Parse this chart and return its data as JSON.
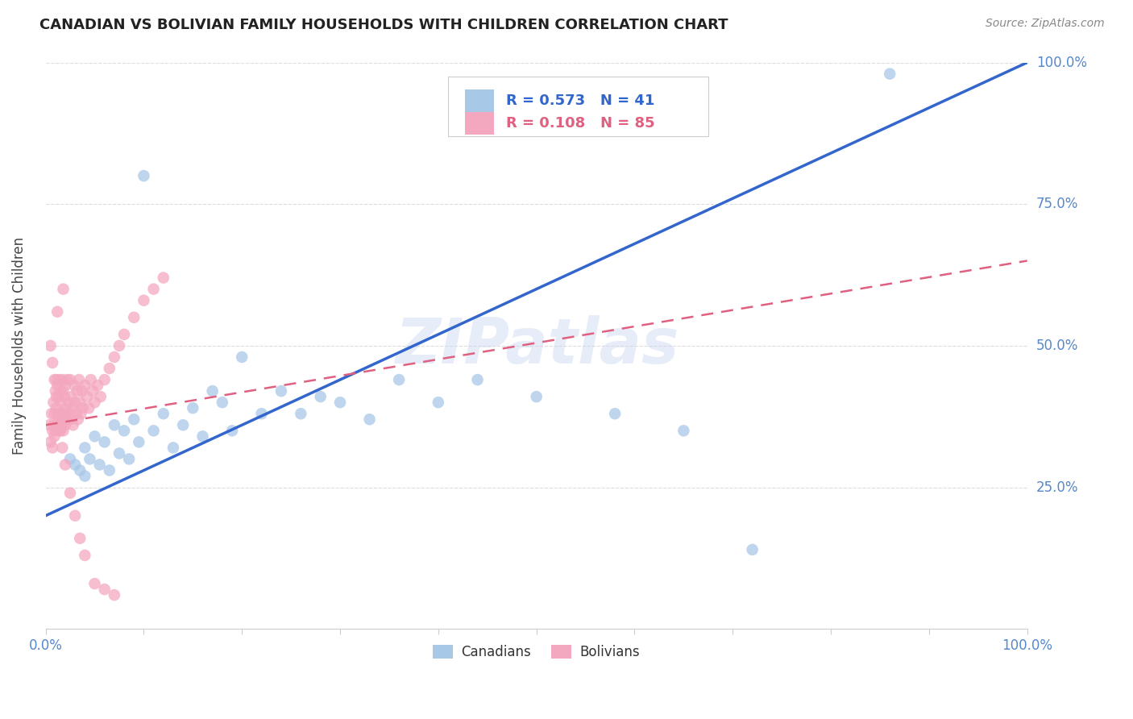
{
  "title": "CANADIAN VS BOLIVIAN FAMILY HOUSEHOLDS WITH CHILDREN CORRELATION CHART",
  "source": "Source: ZipAtlas.com",
  "ylabel": "Family Households with Children",
  "canadian_R": 0.573,
  "canadian_N": 41,
  "bolivian_R": 0.108,
  "bolivian_N": 85,
  "canadian_color": "#a8c8e8",
  "bolivian_color": "#f4a8c0",
  "canadian_line_color": "#3366cc",
  "bolivian_line_color": "#e06080",
  "watermark": "ZIPatlas",
  "xlim": [
    0.0,
    1.0
  ],
  "ylim": [
    0.0,
    1.0
  ],
  "xticks": [
    0.0,
    0.1,
    0.2,
    0.3,
    0.4,
    0.5,
    0.6,
    0.7,
    0.8,
    0.9,
    1.0
  ],
  "yticks": [
    0.0,
    0.25,
    0.5,
    0.75,
    1.0
  ],
  "background_color": "#ffffff",
  "grid_color": "#dddddd",
  "tick_color": "#5588cc",
  "canadian_x": [
    0.025,
    0.03,
    0.035,
    0.04,
    0.04,
    0.045,
    0.05,
    0.055,
    0.06,
    0.065,
    0.07,
    0.075,
    0.08,
    0.085,
    0.09,
    0.095,
    0.1,
    0.11,
    0.12,
    0.13,
    0.14,
    0.15,
    0.16,
    0.17,
    0.18,
    0.19,
    0.2,
    0.22,
    0.24,
    0.26,
    0.28,
    0.3,
    0.33,
    0.36,
    0.4,
    0.44,
    0.5,
    0.58,
    0.65,
    0.72,
    0.86
  ],
  "canadian_y": [
    0.3,
    0.29,
    0.28,
    0.32,
    0.27,
    0.3,
    0.34,
    0.29,
    0.33,
    0.28,
    0.36,
    0.31,
    0.35,
    0.3,
    0.37,
    0.33,
    0.8,
    0.35,
    0.38,
    0.32,
    0.36,
    0.39,
    0.34,
    0.42,
    0.4,
    0.35,
    0.48,
    0.38,
    0.42,
    0.38,
    0.41,
    0.4,
    0.37,
    0.44,
    0.4,
    0.44,
    0.41,
    0.38,
    0.35,
    0.14,
    0.98
  ],
  "bolivian_x": [
    0.004,
    0.005,
    0.006,
    0.007,
    0.007,
    0.008,
    0.008,
    0.009,
    0.009,
    0.01,
    0.01,
    0.011,
    0.011,
    0.012,
    0.012,
    0.013,
    0.013,
    0.014,
    0.014,
    0.015,
    0.015,
    0.016,
    0.016,
    0.017,
    0.017,
    0.018,
    0.018,
    0.019,
    0.019,
    0.02,
    0.02,
    0.021,
    0.022,
    0.022,
    0.023,
    0.024,
    0.025,
    0.025,
    0.026,
    0.027,
    0.028,
    0.029,
    0.03,
    0.031,
    0.032,
    0.033,
    0.034,
    0.035,
    0.036,
    0.037,
    0.038,
    0.04,
    0.042,
    0.044,
    0.046,
    0.048,
    0.05,
    0.053,
    0.056,
    0.06,
    0.065,
    0.07,
    0.075,
    0.08,
    0.09,
    0.1,
    0.11,
    0.12,
    0.005,
    0.007,
    0.009,
    0.011,
    0.013,
    0.015,
    0.017,
    0.02,
    0.025,
    0.03,
    0.035,
    0.04,
    0.05,
    0.06,
    0.07,
    0.012,
    0.018
  ],
  "bolivian_y": [
    0.36,
    0.33,
    0.38,
    0.35,
    0.32,
    0.4,
    0.36,
    0.34,
    0.38,
    0.42,
    0.35,
    0.44,
    0.39,
    0.36,
    0.43,
    0.37,
    0.41,
    0.35,
    0.44,
    0.38,
    0.42,
    0.36,
    0.4,
    0.37,
    0.44,
    0.35,
    0.42,
    0.38,
    0.41,
    0.36,
    0.43,
    0.39,
    0.37,
    0.44,
    0.4,
    0.38,
    0.44,
    0.37,
    0.41,
    0.39,
    0.36,
    0.43,
    0.4,
    0.38,
    0.42,
    0.37,
    0.44,
    0.4,
    0.38,
    0.42,
    0.39,
    0.43,
    0.41,
    0.39,
    0.44,
    0.42,
    0.4,
    0.43,
    0.41,
    0.44,
    0.46,
    0.48,
    0.5,
    0.52,
    0.55,
    0.58,
    0.6,
    0.62,
    0.5,
    0.47,
    0.44,
    0.41,
    0.38,
    0.35,
    0.32,
    0.29,
    0.24,
    0.2,
    0.16,
    0.13,
    0.08,
    0.07,
    0.06,
    0.56,
    0.6
  ]
}
